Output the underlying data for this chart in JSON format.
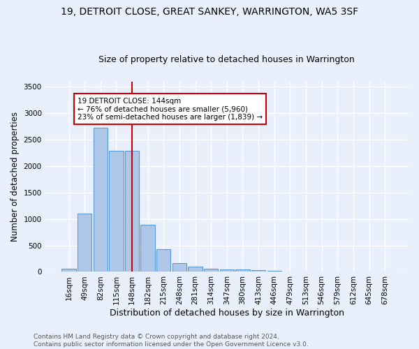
{
  "title": "19, DETROIT CLOSE, GREAT SANKEY, WARRINGTON, WA5 3SF",
  "subtitle": "Size of property relative to detached houses in Warrington",
  "xlabel": "Distribution of detached houses by size in Warrington",
  "ylabel": "Number of detached properties",
  "categories": [
    "16sqm",
    "49sqm",
    "82sqm",
    "115sqm",
    "148sqm",
    "182sqm",
    "215sqm",
    "248sqm",
    "281sqm",
    "314sqm",
    "347sqm",
    "380sqm",
    "413sqm",
    "446sqm",
    "479sqm",
    "513sqm",
    "546sqm",
    "579sqm",
    "612sqm",
    "645sqm",
    "678sqm"
  ],
  "values": [
    55,
    1100,
    2730,
    2290,
    2290,
    890,
    425,
    170,
    100,
    60,
    45,
    40,
    28,
    20,
    0,
    0,
    0,
    0,
    0,
    0,
    0
  ],
  "bar_color": "#aec6e8",
  "bar_edge_color": "#5b9bd5",
  "vline_x_index": 4,
  "vline_color": "#cc0000",
  "annotation_text": "19 DETROIT CLOSE: 144sqm\n← 76% of detached houses are smaller (5,960)\n23% of semi-detached houses are larger (1,839) →",
  "annotation_box_color": "#ffffff",
  "annotation_box_edge": "#cc0000",
  "ylim": [
    0,
    3600
  ],
  "yticks": [
    0,
    500,
    1000,
    1500,
    2000,
    2500,
    3000,
    3500
  ],
  "bg_color": "#eaf0fb",
  "grid_color": "#ffffff",
  "footer_line1": "Contains HM Land Registry data © Crown copyright and database right 2024.",
  "footer_line2": "Contains public sector information licensed under the Open Government Licence v3.0.",
  "title_fontsize": 10,
  "subtitle_fontsize": 9,
  "xlabel_fontsize": 9,
  "ylabel_fontsize": 8.5,
  "tick_fontsize": 7.5,
  "footer_fontsize": 6.5,
  "annotation_fontsize": 7.5
}
